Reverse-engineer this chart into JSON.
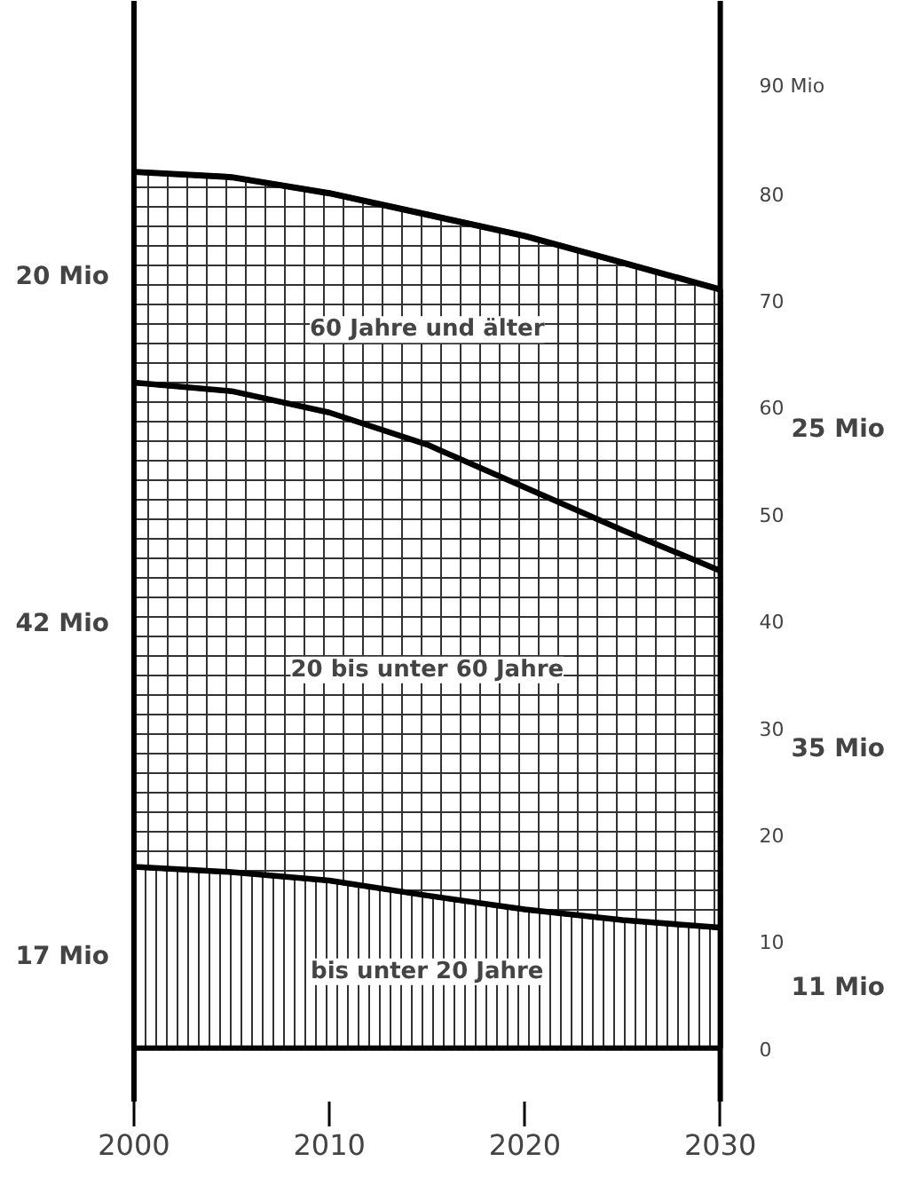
{
  "chart_data": {
    "type": "area",
    "stacked": true,
    "x": [
      2000,
      2005,
      2010,
      2015,
      2020,
      2025,
      2030
    ],
    "series": [
      {
        "name": "bis unter 20 Jahre",
        "color": "#000000",
        "values": [
          17,
          16.5,
          15.7,
          14.3,
          13,
          12,
          11.3
        ]
      },
      {
        "name": "20 bis unter 60 Jahre",
        "color": "#000000",
        "values": [
          45.3,
          45,
          43.8,
          42.2,
          39.5,
          36.5,
          33.4
        ]
      },
      {
        "name": "60 Jahre und älter",
        "color": "#000000",
        "values": [
          19.7,
          20,
          20.5,
          21.5,
          23.5,
          25,
          26.3
        ]
      }
    ],
    "xlim": [
      2000,
      2030
    ],
    "xticks": [
      2000,
      2010,
      2020,
      2030
    ],
    "ylim": [
      -5,
      98
    ],
    "yticks": [
      0,
      10,
      20,
      30,
      40,
      50,
      60,
      70,
      80,
      {
        "value": 90,
        "label": "90 Mio"
      }
    ],
    "grid": false,
    "legend": false,
    "annotations": [
      "20 Mio",
      "42 Mio",
      "17 Mio",
      "25 Mio",
      "35 Mio",
      "11 Mio"
    ]
  }
}
